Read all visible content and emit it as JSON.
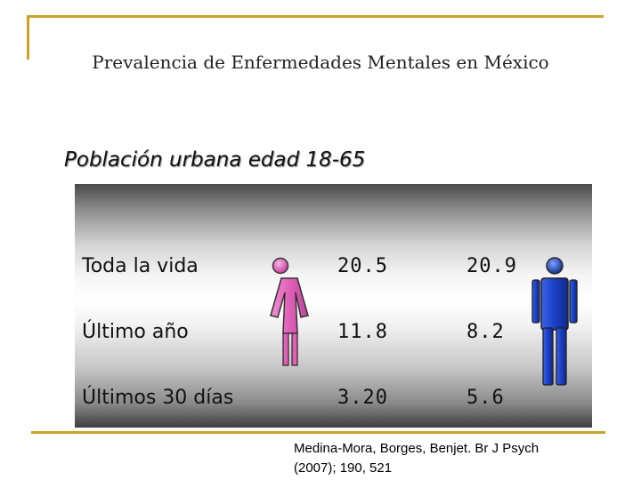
{
  "title": "Prevalencia de Enfermedades Mentales en México",
  "subtitle": "Población urbana  edad 18-65",
  "rows": [
    {
      "label": "Toda la vida",
      "women": "20.5",
      "men": "20.9"
    },
    {
      "label": "Último año",
      "women": "11.8",
      "men": "8.2"
    },
    {
      "label": "Últimos 30 días",
      "women": "3.20",
      "men": "5.6"
    }
  ],
  "icons": {
    "women": "female-figure-icon",
    "men": "male-figure-icon"
  },
  "colors": {
    "female": "#e060b8",
    "male": "#1a3fc4",
    "frame": "#c9a227"
  },
  "citation": {
    "line1": "Medina-Mora, Borges, Benjet. Br J Psych",
    "line2": "(2007); 190, 521"
  }
}
